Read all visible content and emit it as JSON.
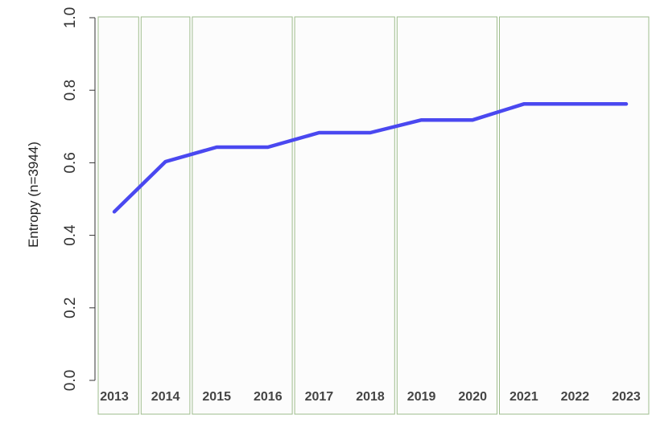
{
  "chart_data": {
    "type": "line",
    "title": "",
    "xlabel": "",
    "ylabel": "Entropy (n=3944)",
    "ylim": [
      0,
      1
    ],
    "y_ticks": [
      "0.0",
      "0.2",
      "0.4",
      "0.6",
      "0.8",
      "1.0"
    ],
    "categories": [
      "2013",
      "2014",
      "2015",
      "2016",
      "2017",
      "2018",
      "2019",
      "2020",
      "2021",
      "2022",
      "2023"
    ],
    "series": [
      {
        "values": [
          0.465,
          0.603,
          0.643,
          0.643,
          0.683,
          0.683,
          0.718,
          0.718,
          0.762,
          0.762,
          0.762
        ]
      }
    ],
    "grid": false,
    "legend": "none",
    "line_color": "#4a48f0",
    "panel_border_color": "#9ebc8c",
    "panel_fill_color": "#fcfcfc",
    "panel_groups": [
      [
        "2013"
      ],
      [
        "2014"
      ],
      [
        "2015",
        "2016"
      ],
      [
        "2017",
        "2018"
      ],
      [
        "2019",
        "2020"
      ],
      [
        "2021",
        "2022",
        "2023"
      ]
    ]
  }
}
